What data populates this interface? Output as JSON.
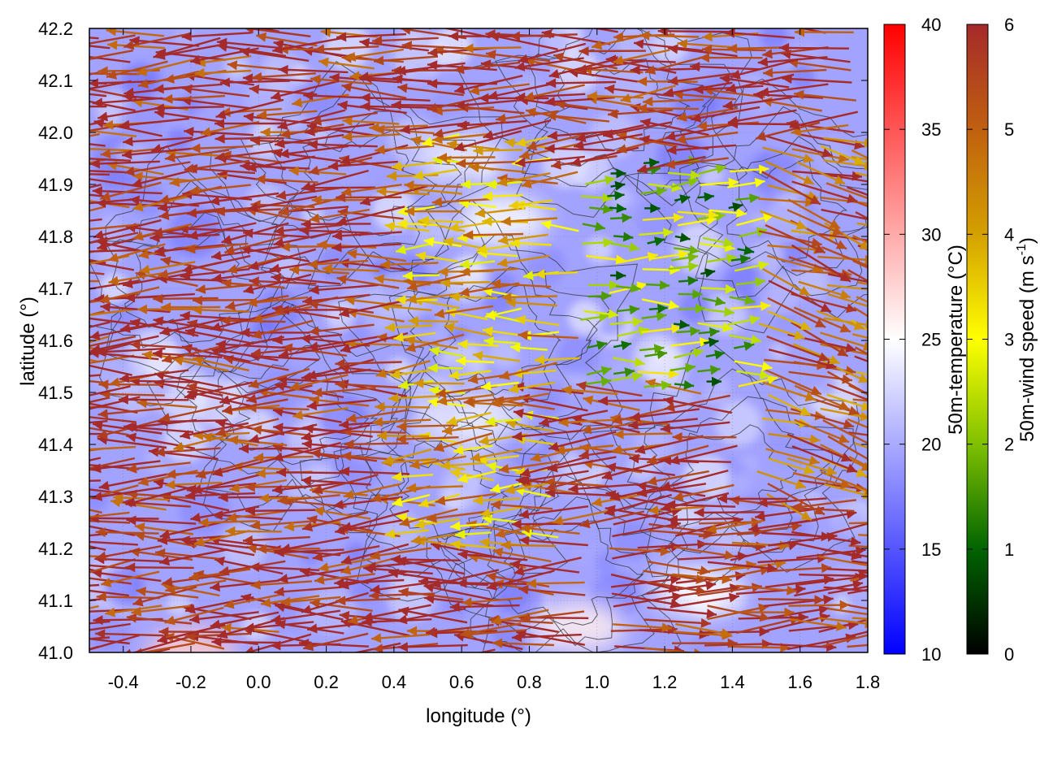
{
  "chart_data": {
    "type": "vector-field",
    "xlabel": "longitude (°)",
    "ylabel": "latitude (°)",
    "xlim": [
      -0.5,
      1.8
    ],
    "ylim": [
      41.0,
      42.2
    ],
    "xticks": [
      "-0.4",
      "-0.2",
      "0.0",
      "0.2",
      "0.4",
      "0.6",
      "0.8",
      "1.0",
      "1.2",
      "1.4",
      "1.6",
      "1.8"
    ],
    "xtick_values": [
      -0.4,
      -0.2,
      0.0,
      0.2,
      0.4,
      0.6,
      0.8,
      1.0,
      1.2,
      1.4,
      1.6,
      1.8
    ],
    "yticks": [
      "41.0",
      "41.1",
      "41.2",
      "41.3",
      "41.4",
      "41.5",
      "41.6",
      "41.7",
      "41.8",
      "41.9",
      "42.0",
      "42.1",
      "42.2"
    ],
    "ytick_values": [
      41.0,
      41.1,
      41.2,
      41.3,
      41.4,
      41.5,
      41.6,
      41.7,
      41.8,
      41.9,
      42.0,
      42.1,
      42.2
    ],
    "grid": true,
    "background_field": {
      "quantity": "50m-temperature",
      "dominant_range_c": [
        16,
        23
      ],
      "warm_patches": [
        {
          "lon": 0.72,
          "lat": 41.83,
          "temp_c": 25
        },
        {
          "lon": 0.95,
          "lat": 41.05,
          "temp_c": 26
        },
        {
          "lon": -0.2,
          "lat": 41.0,
          "temp_c": 28
        },
        {
          "lon": 1.3,
          "lat": 41.12,
          "temp_c": 25
        },
        {
          "lon": 0.65,
          "lat": 41.45,
          "temp_c": 24
        },
        {
          "lon": 0.6,
          "lat": 41.95,
          "temp_c": 24
        }
      ]
    },
    "wind_field": {
      "quantity": "50m-wind speed",
      "regions": [
        {
          "region": "west",
          "lon_range": [
            -0.5,
            0.5
          ],
          "lat_range": [
            41.0,
            42.2
          ],
          "direction": "westward",
          "speed_ms": 6
        },
        {
          "region": "center",
          "lon_range": [
            0.5,
            0.95
          ],
          "lat_range": [
            41.2,
            42.0
          ],
          "direction": "westward",
          "speed_ms": 4
        },
        {
          "region": "center-east",
          "lon_range": [
            0.95,
            1.45
          ],
          "lat_range": [
            41.5,
            41.95
          ],
          "direction": "eastward",
          "speed_ms": 2
        },
        {
          "region": "southeast",
          "lon_range": [
            1.0,
            1.8
          ],
          "lat_range": [
            41.0,
            41.25
          ],
          "direction": "eastward",
          "speed_ms": 6
        },
        {
          "region": "east",
          "lon_range": [
            1.45,
            1.8
          ],
          "lat_range": [
            41.3,
            42.0
          ],
          "direction": "southeastward",
          "speed_ms": 5
        }
      ]
    },
    "colorbars": [
      {
        "name": "temperature",
        "label": "50m-temperature (°C)",
        "range": [
          10,
          40
        ],
        "ticks": [
          "10",
          "15",
          "20",
          "25",
          "30",
          "35",
          "40"
        ],
        "tick_values": [
          10,
          15,
          20,
          25,
          30,
          35,
          40
        ],
        "colors": [
          "#0000ff",
          "#ffffff",
          "#ff0000"
        ]
      },
      {
        "name": "wind",
        "label": "50m-wind speed (m s",
        "label_sup": "-1",
        "label_end": ")",
        "range": [
          0,
          6
        ],
        "ticks": [
          "0",
          "1",
          "2",
          "3",
          "4",
          "5",
          "6"
        ],
        "tick_values": [
          0,
          1,
          2,
          3,
          4,
          5,
          6
        ],
        "colors": [
          "#000000",
          "#006400",
          "#7fc000",
          "#ffff00",
          "#d4a000",
          "#c06010",
          "#a52a2a"
        ]
      }
    ]
  }
}
